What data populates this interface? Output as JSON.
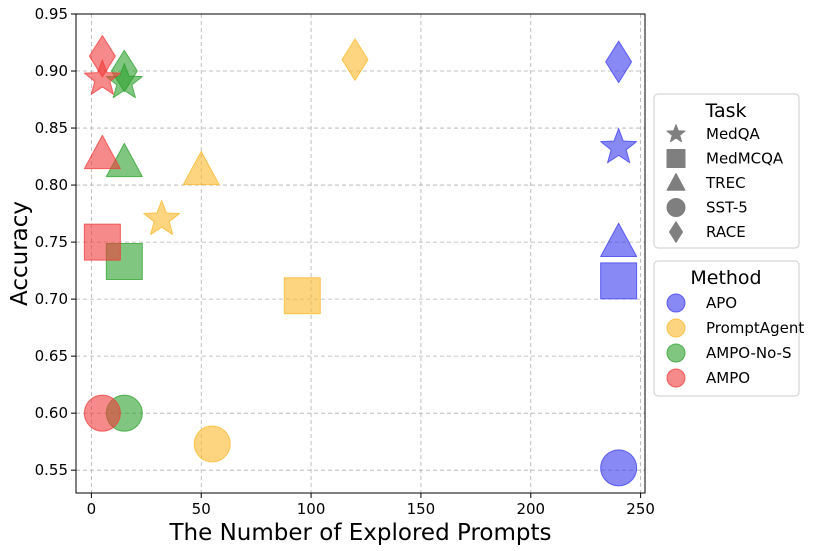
{
  "chart_data": {
    "type": "scatter",
    "xlabel": "The Number of Explored Prompts",
    "ylabel": "Accuracy",
    "xlim": [
      -7,
      252
    ],
    "ylim": [
      0.53,
      0.95
    ],
    "xticks": [
      "0",
      "50",
      "100",
      "150",
      "200",
      "250"
    ],
    "xtick_values": [
      0,
      50,
      100,
      150,
      200,
      250
    ],
    "yticks": [
      "0.55",
      "0.60",
      "0.65",
      "0.70",
      "0.75",
      "0.80",
      "0.85",
      "0.90",
      "0.95"
    ],
    "ytick_values": [
      0.55,
      0.6,
      0.65,
      0.7,
      0.75,
      0.8,
      0.85,
      0.9,
      0.95
    ],
    "grid": true,
    "legend_task": {
      "title": "Task",
      "entries": [
        {
          "label": "MedQA",
          "marker": "star"
        },
        {
          "label": "MedMCQA",
          "marker": "square"
        },
        {
          "label": "TREC",
          "marker": "triangle"
        },
        {
          "label": "SST-5",
          "marker": "circle"
        },
        {
          "label": "RACE",
          "marker": "diamond"
        }
      ]
    },
    "legend_method": {
      "title": "Method",
      "entries": [
        {
          "label": "APO",
          "color": "#3b3bf0"
        },
        {
          "label": "PromptAgent",
          "color": "#fbb829"
        },
        {
          "label": "AMPO-No-S",
          "color": "#2ca02c"
        },
        {
          "label": "AMPO",
          "color": "#f03a3a"
        }
      ]
    },
    "series": [
      {
        "name": "APO",
        "color": "#3b3bf0",
        "points": [
          {
            "task": "MedQA",
            "x": 240,
            "y": 0.833
          },
          {
            "task": "MedMCQA",
            "x": 240,
            "y": 0.716
          },
          {
            "task": "TREC",
            "x": 240,
            "y": 0.75
          },
          {
            "task": "SST-5",
            "x": 240,
            "y": 0.552
          },
          {
            "task": "RACE",
            "x": 240,
            "y": 0.908
          }
        ]
      },
      {
        "name": "PromptAgent",
        "color": "#fbb829",
        "points": [
          {
            "task": "MedQA",
            "x": 32,
            "y": 0.77
          },
          {
            "task": "MedMCQA",
            "x": 96,
            "y": 0.703
          },
          {
            "task": "TREC",
            "x": 50,
            "y": 0.813
          },
          {
            "task": "SST-5",
            "x": 55,
            "y": 0.573
          },
          {
            "task": "RACE",
            "x": 120,
            "y": 0.91
          }
        ]
      },
      {
        "name": "AMPO-No-S",
        "color": "#2ca02c",
        "points": [
          {
            "task": "MedQA",
            "x": 15,
            "y": 0.89
          },
          {
            "task": "MedMCQA",
            "x": 15,
            "y": 0.733
          },
          {
            "task": "TREC",
            "x": 15,
            "y": 0.82
          },
          {
            "task": "SST-5",
            "x": 15,
            "y": 0.6
          },
          {
            "task": "RACE",
            "x": 15,
            "y": 0.9
          }
        ]
      },
      {
        "name": "AMPO",
        "color": "#f03a3a",
        "points": [
          {
            "task": "MedQA",
            "x": 5,
            "y": 0.893
          },
          {
            "task": "MedMCQA",
            "x": 5,
            "y": 0.75
          },
          {
            "task": "TREC",
            "x": 5,
            "y": 0.827
          },
          {
            "task": "SST-5",
            "x": 5,
            "y": 0.6
          },
          {
            "task": "RACE",
            "x": 5,
            "y": 0.913
          }
        ]
      }
    ]
  }
}
